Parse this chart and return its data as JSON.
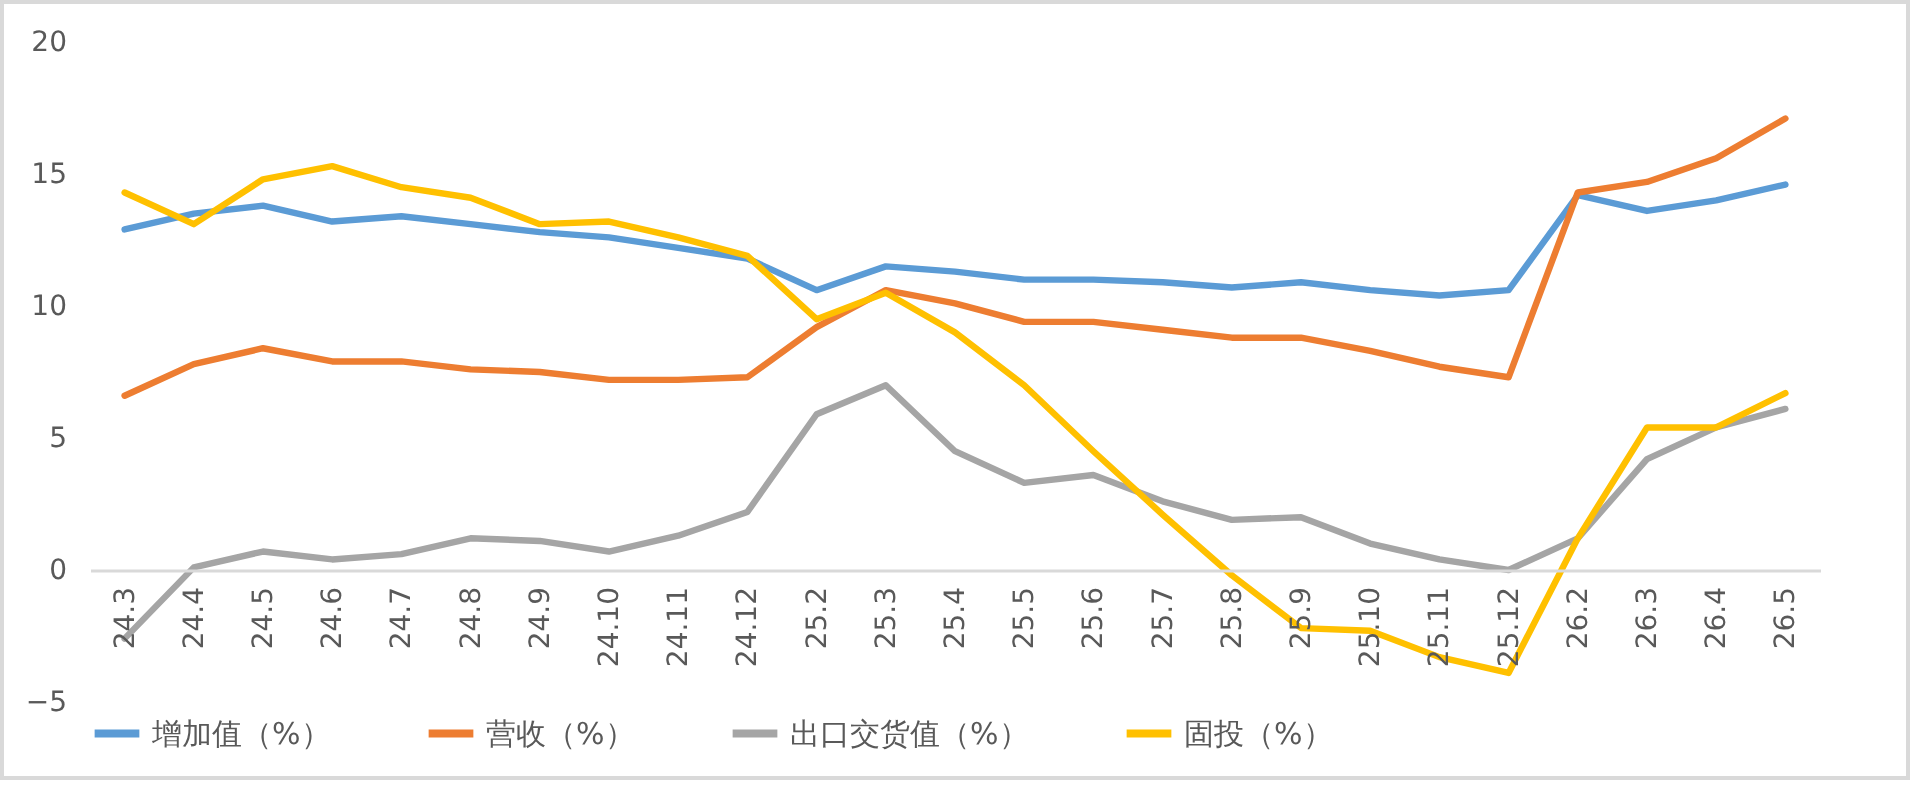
{
  "chart_data": {
    "type": "line",
    "categories": [
      "24.3",
      "24.4",
      "24.5",
      "24.6",
      "24.7",
      "24.8",
      "24.9",
      "24.10",
      "24.11",
      "24.12",
      "25.2",
      "25.3",
      "25.4",
      "25.5",
      "25.6",
      "25.7",
      "25.8",
      "25.9",
      "25.10",
      "25.11",
      "25.12",
      "26.2",
      "26.3",
      "26.4",
      "26.5"
    ],
    "series": [
      {
        "name": "增加值（%）",
        "color": "#5b9bd5",
        "values": [
          12.9,
          13.5,
          13.8,
          13.2,
          13.4,
          13.1,
          12.8,
          12.6,
          12.2,
          11.8,
          10.6,
          11.5,
          11.3,
          11.0,
          11.0,
          10.9,
          10.7,
          10.9,
          10.6,
          10.4,
          10.6,
          14.2,
          13.6,
          14.0,
          14.6
        ]
      },
      {
        "name": "营收（%）",
        "color": "#ed7d31",
        "values": [
          6.6,
          7.8,
          8.4,
          7.9,
          7.9,
          7.6,
          7.5,
          7.2,
          7.2,
          7.3,
          9.2,
          10.6,
          10.1,
          9.4,
          9.4,
          9.1,
          8.8,
          8.8,
          8.3,
          7.7,
          7.3,
          14.3,
          14.7,
          15.6,
          17.1
        ]
      },
      {
        "name": "出口交货值（%）",
        "color": "#a5a5a5",
        "values": [
          -2.6,
          0.1,
          0.7,
          0.4,
          0.6,
          1.2,
          1.1,
          0.7,
          1.3,
          2.2,
          5.9,
          7.0,
          4.5,
          3.3,
          3.6,
          2.6,
          1.9,
          2.0,
          1.0,
          0.4,
          0.0,
          1.2,
          4.2,
          5.4,
          6.1
        ]
      },
      {
        "name": "固投（%）",
        "color": "#ffc000",
        "values": [
          14.3,
          13.1,
          14.8,
          15.3,
          14.5,
          14.1,
          13.1,
          13.2,
          12.6,
          11.9,
          9.5,
          10.5,
          9.0,
          7.0,
          4.5,
          2.1,
          -0.2,
          -2.2,
          -2.3,
          -3.3,
          -3.9,
          1.2,
          5.4,
          5.4,
          6.7
        ]
      }
    ],
    "ylim": [
      -5,
      20
    ],
    "yticks": [
      -5,
      0,
      5,
      10,
      15,
      20
    ],
    "grid": false,
    "legend": "bottom",
    "marker": "none"
  }
}
